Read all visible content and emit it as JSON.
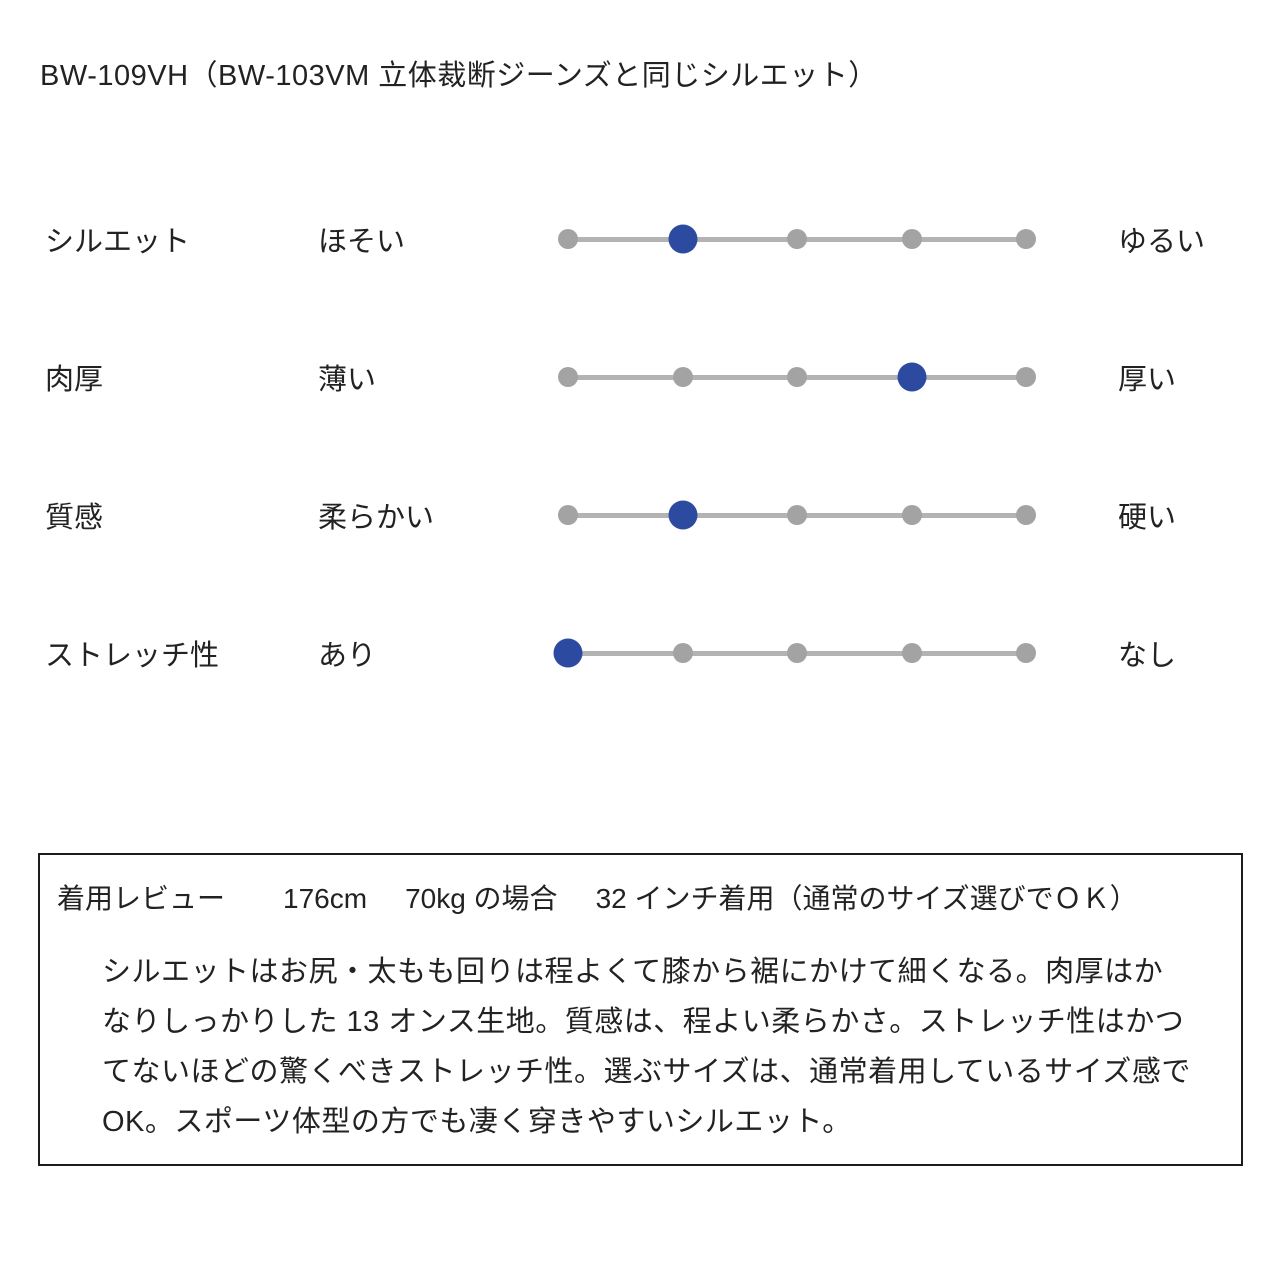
{
  "colors": {
    "accent_blue": "#2b4aa0",
    "dot_gray": "#a3a3a3",
    "track_gray": "#b3b3b3",
    "text": "#222222",
    "box_border": "#1c1c1c",
    "background": "#ffffff"
  },
  "chart_data": {
    "type": "scatter",
    "subtype": "five-point-rating-scale",
    "title": "BW-109VH（BW-103VM 立体裁断ジーンズと同じシルエット）",
    "scale_points": 5,
    "xlim": [
      1,
      5
    ],
    "legend": false,
    "grid": false,
    "rows": [
      {
        "attribute": "シルエット",
        "min_label": "ほそい",
        "max_label": "ゆるい",
        "value": 2
      },
      {
        "attribute": "肉厚",
        "min_label": "薄い",
        "max_label": "厚い",
        "value": 4
      },
      {
        "attribute": "質感",
        "min_label": "柔らかい",
        "max_label": "硬い",
        "value": 2
      },
      {
        "attribute": "ストレッチ性",
        "min_label": "あり",
        "max_label": "なし",
        "value": 1
      }
    ]
  },
  "review_box": {
    "label": "着用レビュー",
    "height": "176cm",
    "weight_case": "70kg の場合",
    "size_note": "32 インチ着用（通常のサイズ選びでＯＫ）",
    "body": "シルエットはお尻・太もも回りは程よくて膝から裾にかけて細くなる。肉厚はかなりしっかりした 13 オンス生地。質感は、程よい柔らかさ。ストレッチ性はかつてないほどの驚くべきストレッチ性。選ぶサイズは、通常着用しているサイズ感で OK。スポーツ体型の方でも凄く穿きやすいシルエット。"
  }
}
